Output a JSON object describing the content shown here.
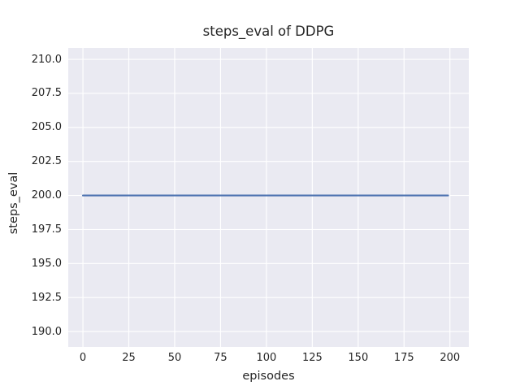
{
  "figure": {
    "background": "#ffffff",
    "plot_background": "#eaeaf2",
    "grid_color": "#ffffff",
    "text_color": "#262626"
  },
  "chart_data": {
    "type": "line",
    "title": "steps_eval of DDPG",
    "xlabel": "episodes",
    "ylabel": "steps_eval",
    "xlim": [
      -8,
      210.3
    ],
    "ylim": [
      188.87,
      210.84
    ],
    "grid": true,
    "legend": false,
    "x_ticks": [
      0,
      25,
      50,
      75,
      100,
      125,
      150,
      175,
      200
    ],
    "x_tick_labels": [
      "0",
      "25",
      "50",
      "75",
      "100",
      "125",
      "150",
      "175",
      "200"
    ],
    "y_ticks": [
      190.0,
      192.5,
      195.0,
      197.5,
      200.0,
      202.5,
      205.0,
      207.5,
      210.0
    ],
    "y_tick_labels": [
      "190.0",
      "192.5",
      "195.0",
      "197.5",
      "200.0",
      "202.5",
      "205.0",
      "207.5",
      "210.0"
    ],
    "series": [
      {
        "name": "steps_eval",
        "color": "#4c72b0",
        "x": [
          0,
          199
        ],
        "y": [
          200,
          200
        ]
      }
    ]
  }
}
